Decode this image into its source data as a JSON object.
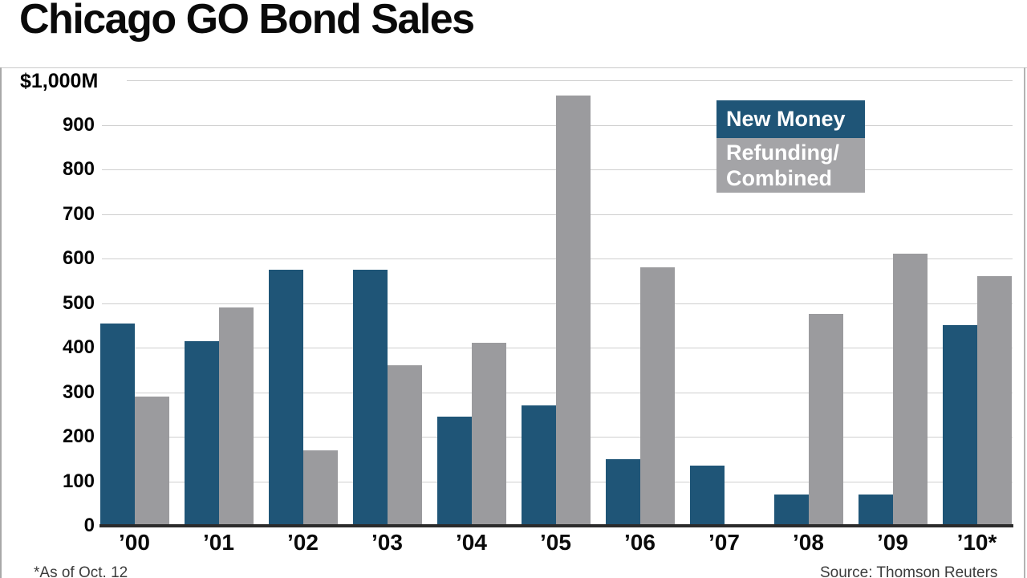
{
  "title": "Chicago GO Bond Sales",
  "y_axis_unit": "$1,000M",
  "footnote": "*As of Oct. 12",
  "source": "Source: Thomson Reuters",
  "colors": {
    "new_money": "#1f5577",
    "refunding": "#9b9b9e",
    "legend_new_money_bg": "#1f5577",
    "legend_refunding_bg": "#a4a4a7",
    "gridline": "#cfcfcf",
    "baseline": "#2b2b2b",
    "frame": "#b3b3b3",
    "text": "#000000"
  },
  "legend": {
    "new_money_label": "New Money",
    "refunding_line1": "Refunding/",
    "refunding_line2": "Combined"
  },
  "chart_data": {
    "type": "bar",
    "title": "Chicago GO Bond Sales",
    "categories": [
      "’00",
      "’01",
      "’02",
      "’03",
      "’04",
      "’05",
      "’06",
      "’07",
      "’08",
      "’09",
      "’10*"
    ],
    "series": [
      {
        "name": "New Money",
        "color": "#1f5577",
        "values": [
          455,
          415,
          575,
          575,
          245,
          270,
          150,
          135,
          70,
          70,
          450
        ]
      },
      {
        "name": "Refunding/Combined",
        "color": "#9b9b9e",
        "values": [
          290,
          490,
          170,
          360,
          410,
          965,
          580,
          0,
          475,
          610,
          560
        ]
      }
    ],
    "xlabel": "",
    "ylabel": "$1,000M",
    "ylim": [
      0,
      1000
    ],
    "yticks": [
      0,
      100,
      200,
      300,
      400,
      500,
      600,
      700,
      800,
      900,
      1000
    ],
    "ytick_labels": [
      "0",
      "100",
      "200",
      "300",
      "400",
      "500",
      "600",
      "700",
      "800",
      "900",
      "$1,000M"
    ],
    "grid": true,
    "legend_position": "top-right"
  }
}
